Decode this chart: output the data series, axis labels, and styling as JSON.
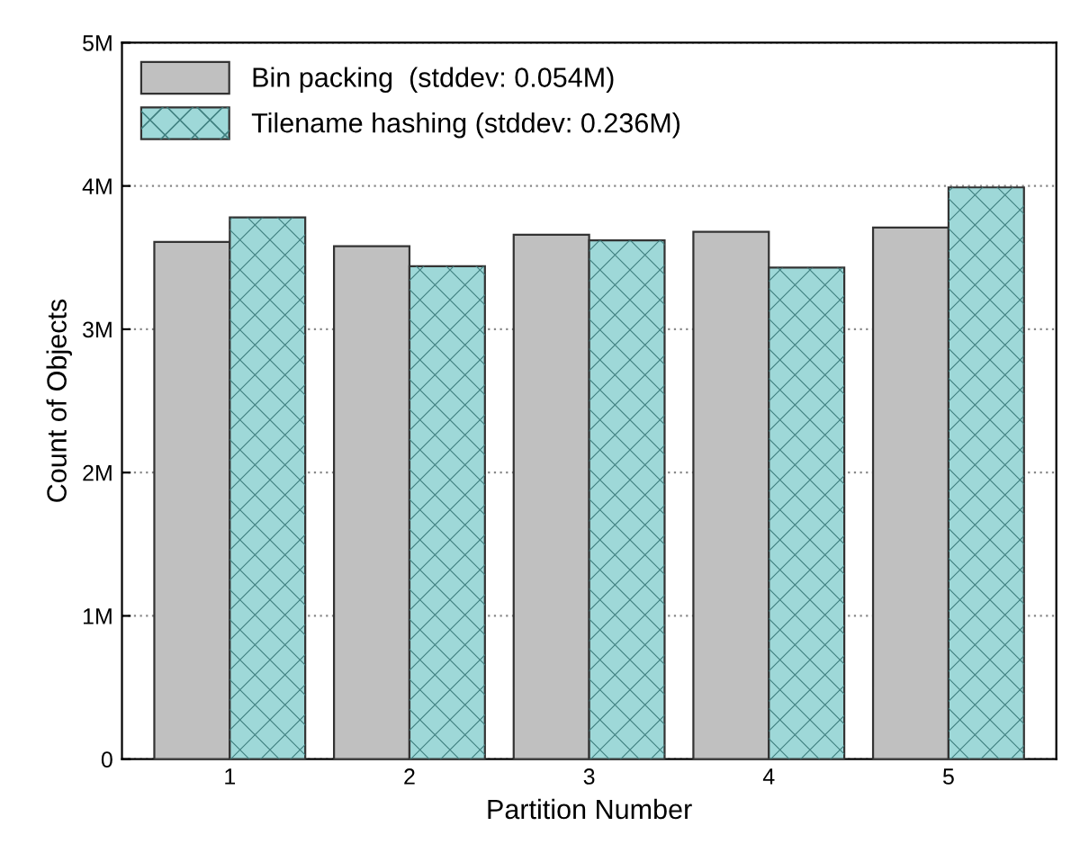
{
  "chart_data": {
    "type": "bar",
    "xlabel": "Partition Number",
    "ylabel": "Count of Objects",
    "categories": [
      "1",
      "2",
      "3",
      "4",
      "5"
    ],
    "series": [
      {
        "name": "Bin packing  (stddev: 0.054M)",
        "color": "#c0c0c0",
        "values": [
          3.61,
          3.58,
          3.66,
          3.68,
          3.71
        ]
      },
      {
        "name": "Tilename hashing (stddev: 0.236M)",
        "color": "#9ed8d8",
        "values": [
          3.78,
          3.44,
          3.62,
          3.43,
          3.99
        ]
      }
    ],
    "ylim": [
      0,
      5
    ],
    "yticks": [
      {
        "value": 0,
        "label": "0"
      },
      {
        "value": 1,
        "label": "1M"
      },
      {
        "value": 2,
        "label": "2M"
      },
      {
        "value": 3,
        "label": "3M"
      },
      {
        "value": 4,
        "label": "4M"
      },
      {
        "value": 5,
        "label": "5M"
      }
    ],
    "grid": "y",
    "legend": "top left"
  }
}
